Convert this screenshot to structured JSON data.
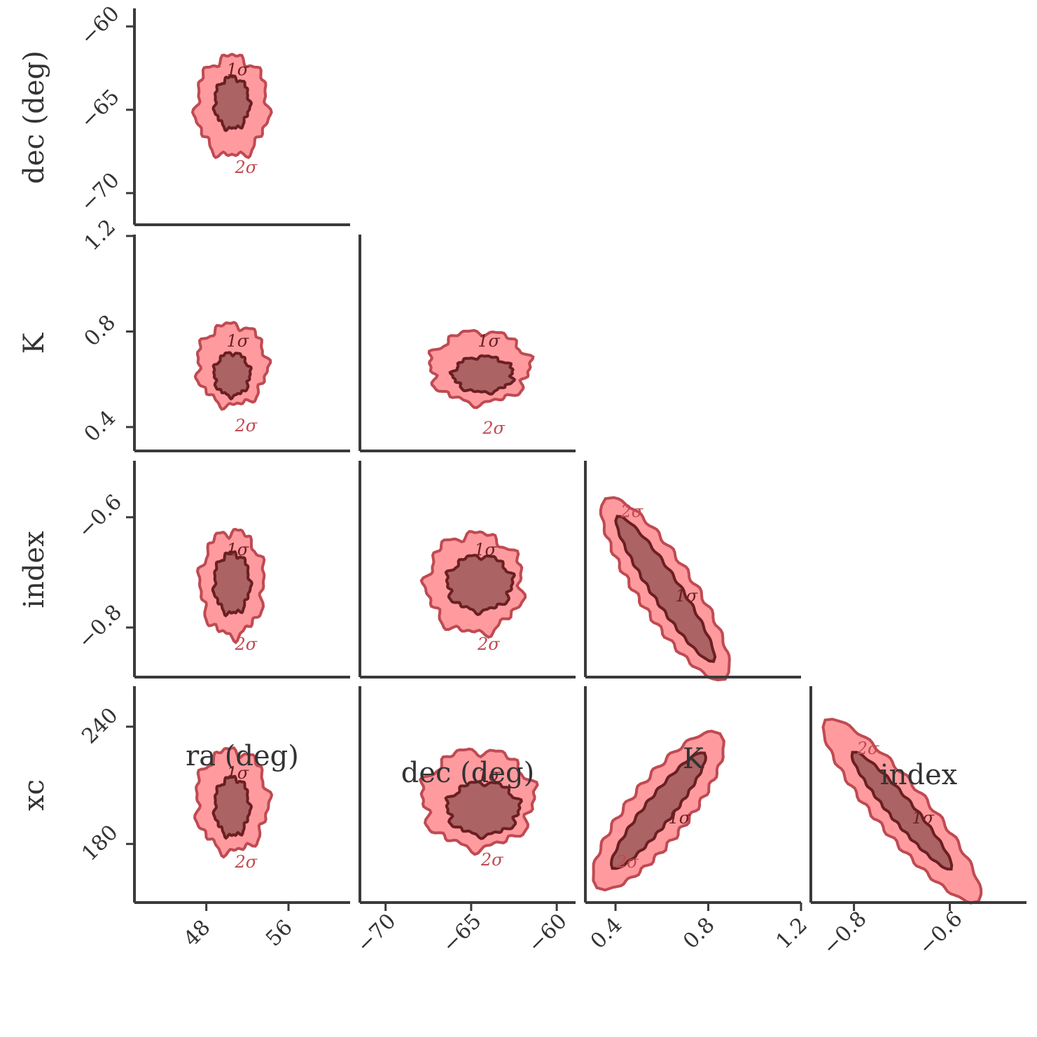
{
  "chart_data": {
    "type": "corner",
    "parameters": [
      {
        "key": "ra",
        "label": "ra (deg)",
        "ticks": [
          48,
          56
        ],
        "tick_labels": [
          "48",
          "56"
        ],
        "range": [
          41,
          62
        ]
      },
      {
        "key": "dec",
        "label": "dec (deg)",
        "ticks": [
          -70,
          -65,
          -60
        ],
        "tick_labels": [
          "−70",
          "−65",
          "−60"
        ],
        "range": [
          -71.5,
          -58.9
        ]
      },
      {
        "key": "K",
        "label": "K",
        "ticks": [
          0.4,
          0.8,
          1.2
        ],
        "tick_labels": [
          "0.4",
          "0.8",
          "1.2"
        ],
        "range": [
          0.27,
          1.2
        ]
      },
      {
        "key": "index",
        "label": "index",
        "ticks": [
          -0.8,
          -0.6
        ],
        "tick_labels": [
          "−0.8",
          "−0.6"
        ],
        "range": [
          -0.89,
          -0.44
        ]
      }
    ],
    "row_parameters": [
      {
        "key": "dec",
        "label": "dec (deg)",
        "ticks": [
          -60,
          -65,
          -70
        ],
        "tick_labels": [
          "−60",
          "−65",
          "−70"
        ],
        "range": [
          -71.9,
          -59
        ]
      },
      {
        "key": "K",
        "label": "K",
        "ticks": [
          1.2,
          0.8,
          0.4
        ],
        "tick_labels": [
          "1.2",
          "0.8",
          "0.4"
        ],
        "range": [
          0.3,
          1.2
        ]
      },
      {
        "key": "index",
        "label": "index",
        "ticks": [
          -0.6,
          -0.8
        ],
        "tick_labels": [
          "−0.6",
          "−0.8"
        ],
        "range": [
          -0.89,
          -0.5
        ]
      },
      {
        "key": "xc",
        "label": "xc",
        "ticks": [
          240,
          180
        ],
        "tick_labels": [
          "240",
          "180"
        ],
        "range": [
          150,
          260
        ]
      }
    ],
    "levels": [
      {
        "name": "1σ",
        "fill": "#a86060",
        "edge": "#6b1f22"
      },
      {
        "name": "2σ",
        "fill": "#ff8a8e",
        "edge": "#c04a52"
      }
    ],
    "panels": [
      {
        "row": 0,
        "col": 0,
        "kind": "blob",
        "c1": [
          50.5,
          -64.6
        ],
        "s1": [
          3.4,
          3.1
        ],
        "c2": [
          50.5,
          -64.8
        ],
        "s2": [
          7.0,
          6.0
        ],
        "rot": 0
      },
      {
        "row": 1,
        "col": 0,
        "kind": "blob",
        "c1": [
          50.5,
          0.62
        ],
        "s1": [
          3.5,
          0.18
        ],
        "c2": [
          50.5,
          0.66
        ],
        "s2": [
          6.8,
          0.34
        ],
        "rot": 0
      },
      {
        "row": 1,
        "col": 1,
        "kind": "blob",
        "c1": [
          -64.3,
          0.62
        ],
        "s1": [
          3.5,
          0.15
        ],
        "c2": [
          -64.5,
          0.65
        ],
        "s2": [
          5.8,
          0.3
        ],
        "rot": 0
      },
      {
        "row": 2,
        "col": 0,
        "kind": "blob",
        "c1": [
          50.5,
          -0.72
        ],
        "s1": [
          3.5,
          0.11
        ],
        "c2": [
          50.5,
          -0.72
        ],
        "s2": [
          6.2,
          0.19
        ],
        "rot": 0
      },
      {
        "row": 2,
        "col": 1,
        "kind": "blob",
        "c1": [
          -64.5,
          -0.72
        ],
        "s1": [
          3.8,
          0.1
        ],
        "c2": [
          -64.8,
          -0.72
        ],
        "s2": [
          5.6,
          0.18
        ],
        "rot": 0
      },
      {
        "row": 2,
        "col": 2,
        "kind": "band",
        "p1": [
          0.41,
          -0.6
        ],
        "p2": [
          0.82,
          -0.86
        ],
        "w1": 0.025,
        "w2": 0.05,
        "ext": 0.13
      },
      {
        "row": 3,
        "col": 0,
        "kind": "blob",
        "c1": [
          50.5,
          199
        ],
        "s1": [
          3.4,
          30
        ],
        "c2": [
          50.5,
          202
        ],
        "s2": [
          7.0,
          52
        ],
        "rot": 0
      },
      {
        "row": 3,
        "col": 1,
        "kind": "blob",
        "c1": [
          -64.3,
          198
        ],
        "s1": [
          4.2,
          27
        ],
        "c2": [
          -64.6,
          203
        ],
        "s2": [
          6.5,
          50
        ],
        "rot": 0
      },
      {
        "row": 3,
        "col": 2,
        "kind": "band",
        "p1": [
          0.39,
          168
        ],
        "p2": [
          0.78,
          226
        ],
        "w1": 7,
        "w2": 15,
        "ext": 0.18
      },
      {
        "row": 3,
        "col": 3,
        "kind": "band",
        "p1": [
          -0.8,
          226
        ],
        "p2": [
          -0.6,
          168
        ],
        "w1": 6,
        "w2": 13,
        "ext": 0.3
      }
    ]
  }
}
